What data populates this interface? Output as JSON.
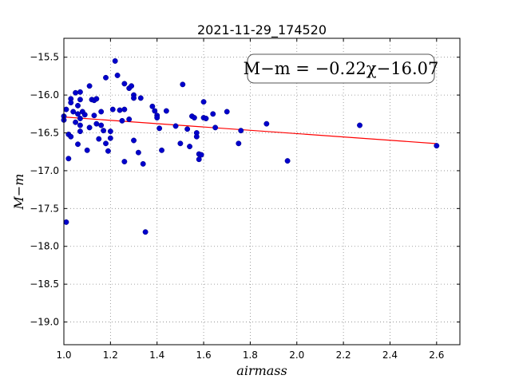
{
  "chart_data": {
    "type": "scatter",
    "title": "2021-11-29_174520",
    "xlabel": "airmass",
    "ylabel": "M−m",
    "xlim": [
      1.0,
      2.7
    ],
    "ylim": [
      -19.3,
      -15.25
    ],
    "y_inverted": true,
    "grid": true,
    "x_ticks": [
      "1.0",
      "1.2",
      "1.4",
      "1.6",
      "1.8",
      "2.0",
      "2.2",
      "2.4",
      "2.6"
    ],
    "y_ticks": [
      "−15.5",
      "−16.0",
      "−16.5",
      "−17.0",
      "−17.5",
      "−18.0",
      "−18.5",
      "−19.0"
    ],
    "annotation": "M−m = −0.22χ−16.07",
    "annotation_placement": "top-right",
    "colors": {
      "points": "#0000cc",
      "fit": "#ff0000",
      "grid": "#888888"
    },
    "fit": {
      "slope": -0.22,
      "intercept": -16.07,
      "x_range": [
        1.0,
        2.6
      ]
    },
    "points": [
      {
        "x": 1.0,
        "y": -16.28
      },
      {
        "x": 1.0,
        "y": -16.33
      },
      {
        "x": 1.01,
        "y": -17.68
      },
      {
        "x": 1.01,
        "y": -16.19
      },
      {
        "x": 1.02,
        "y": -16.84
      },
      {
        "x": 1.02,
        "y": -16.52
      },
      {
        "x": 1.03,
        "y": -16.55
      },
      {
        "x": 1.03,
        "y": -16.05
      },
      {
        "x": 1.03,
        "y": -16.1
      },
      {
        "x": 1.04,
        "y": -16.22
      },
      {
        "x": 1.05,
        "y": -15.97
      },
      {
        "x": 1.05,
        "y": -16.36
      },
      {
        "x": 1.06,
        "y": -16.14
      },
      {
        "x": 1.06,
        "y": -16.65
      },
      {
        "x": 1.06,
        "y": -16.25
      },
      {
        "x": 1.07,
        "y": -16.31
      },
      {
        "x": 1.07,
        "y": -16.48
      },
      {
        "x": 1.07,
        "y": -16.4
      },
      {
        "x": 1.07,
        "y": -15.96
      },
      {
        "x": 1.07,
        "y": -16.06
      },
      {
        "x": 1.08,
        "y": -16.22
      },
      {
        "x": 1.09,
        "y": -16.26
      },
      {
        "x": 1.1,
        "y": -16.73
      },
      {
        "x": 1.11,
        "y": -15.88
      },
      {
        "x": 1.11,
        "y": -16.43
      },
      {
        "x": 1.12,
        "y": -16.06
      },
      {
        "x": 1.13,
        "y": -16.07
      },
      {
        "x": 1.13,
        "y": -16.27
      },
      {
        "x": 1.14,
        "y": -16.05
      },
      {
        "x": 1.14,
        "y": -16.38
      },
      {
        "x": 1.15,
        "y": -16.58
      },
      {
        "x": 1.16,
        "y": -16.22
      },
      {
        "x": 1.16,
        "y": -16.4
      },
      {
        "x": 1.17,
        "y": -16.47
      },
      {
        "x": 1.18,
        "y": -15.77
      },
      {
        "x": 1.18,
        "y": -16.64
      },
      {
        "x": 1.19,
        "y": -16.74
      },
      {
        "x": 1.2,
        "y": -16.57
      },
      {
        "x": 1.2,
        "y": -16.48
      },
      {
        "x": 1.21,
        "y": -16.19
      },
      {
        "x": 1.22,
        "y": -15.55
      },
      {
        "x": 1.23,
        "y": -15.74
      },
      {
        "x": 1.24,
        "y": -16.2
      },
      {
        "x": 1.25,
        "y": -16.34
      },
      {
        "x": 1.26,
        "y": -16.88
      },
      {
        "x": 1.26,
        "y": -16.19
      },
      {
        "x": 1.26,
        "y": -15.85
      },
      {
        "x": 1.28,
        "y": -15.91
      },
      {
        "x": 1.28,
        "y": -16.32
      },
      {
        "x": 1.29,
        "y": -15.88
      },
      {
        "x": 1.3,
        "y": -16.6
      },
      {
        "x": 1.3,
        "y": -16.0
      },
      {
        "x": 1.3,
        "y": -16.04
      },
      {
        "x": 1.32,
        "y": -16.76
      },
      {
        "x": 1.33,
        "y": -16.04
      },
      {
        "x": 1.34,
        "y": -16.91
      },
      {
        "x": 1.35,
        "y": -17.81
      },
      {
        "x": 1.38,
        "y": -16.15
      },
      {
        "x": 1.39,
        "y": -16.21
      },
      {
        "x": 1.4,
        "y": -16.27
      },
      {
        "x": 1.4,
        "y": -16.3
      },
      {
        "x": 1.41,
        "y": -16.44
      },
      {
        "x": 1.42,
        "y": -16.73
      },
      {
        "x": 1.44,
        "y": -16.21
      },
      {
        "x": 1.48,
        "y": -16.41
      },
      {
        "x": 1.5,
        "y": -16.64
      },
      {
        "x": 1.51,
        "y": -15.86
      },
      {
        "x": 1.53,
        "y": -16.45
      },
      {
        "x": 1.54,
        "y": -16.68
      },
      {
        "x": 1.55,
        "y": -16.28
      },
      {
        "x": 1.56,
        "y": -16.3
      },
      {
        "x": 1.57,
        "y": -16.5
      },
      {
        "x": 1.57,
        "y": -16.55
      },
      {
        "x": 1.58,
        "y": -16.78
      },
      {
        "x": 1.58,
        "y": -16.85
      },
      {
        "x": 1.59,
        "y": -16.79
      },
      {
        "x": 1.6,
        "y": -16.09
      },
      {
        "x": 1.6,
        "y": -16.3
      },
      {
        "x": 1.61,
        "y": -16.31
      },
      {
        "x": 1.64,
        "y": -16.25
      },
      {
        "x": 1.65,
        "y": -16.43
      },
      {
        "x": 1.7,
        "y": -16.22
      },
      {
        "x": 1.75,
        "y": -16.64
      },
      {
        "x": 1.76,
        "y": -16.47
      },
      {
        "x": 1.87,
        "y": -16.38
      },
      {
        "x": 1.96,
        "y": -16.87
      },
      {
        "x": 2.27,
        "y": -16.4
      },
      {
        "x": 2.6,
        "y": -16.67
      }
    ]
  }
}
